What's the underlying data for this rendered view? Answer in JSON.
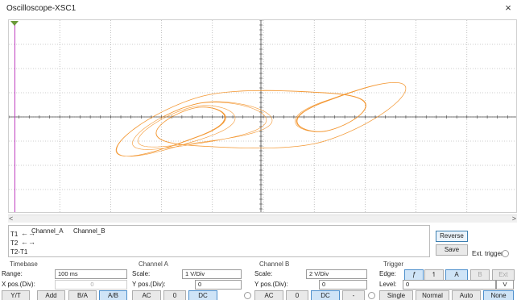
{
  "window": {
    "title": "Oscilloscope-XSC1",
    "close_glyph": "×"
  },
  "colors": {
    "trace": "#f28c1c",
    "grid": "#9a9a9a",
    "axis": "#444444",
    "cursor": "#c040c0",
    "trigger_marker": "#6b9a3a",
    "accent": "#4d8fcc"
  },
  "readout": {
    "rows": [
      "T1",
      "T2",
      "T2-T1"
    ],
    "arrows": "←→",
    "columns": [
      "Channel_A",
      "Channel_B"
    ]
  },
  "actions": {
    "reverse": "Reverse",
    "save": "Save",
    "ext_trigger": "Ext. trigger"
  },
  "timebase": {
    "title": "Timebase",
    "range_label": "Range:",
    "range_value": "100 ms",
    "xpos_label": "X pos.(Div):",
    "xpos_value": "0",
    "modes": [
      "Y/T",
      "Add",
      "B/A",
      "A/B"
    ],
    "active_mode": "A/B"
  },
  "channel_a": {
    "title": "Channel A",
    "scale_label": "Scale:",
    "scale_value": "1 V/Div",
    "ypos_label": "Y pos.(Div):",
    "ypos_value": "0",
    "coupling": [
      "AC",
      "0",
      "DC"
    ],
    "active_coupling": "DC"
  },
  "channel_b": {
    "title": "Channel B",
    "scale_label": "Scale:",
    "scale_value": "2 V/Div",
    "ypos_label": "Y pos.(Div):",
    "ypos_value": "0",
    "coupling": [
      "AC",
      "0",
      "DC",
      "-"
    ],
    "active_coupling": "DC"
  },
  "trigger": {
    "title": "Trigger",
    "edge_label": "Edge:",
    "edge_buttons": [
      "ƒ",
      "↿"
    ],
    "source_buttons": [
      "A",
      "B",
      "Ext"
    ],
    "active_source": "A",
    "level_label": "Level:",
    "level_value": "0",
    "level_unit": "V",
    "modes": [
      "Single",
      "Normal",
      "Auto",
      "None"
    ],
    "active_mode": "None"
  },
  "scope": {
    "grid_x_divs": 10,
    "grid_y_divs": 8,
    "trace_shape": "double-scroll attractor (A/B mode)"
  }
}
